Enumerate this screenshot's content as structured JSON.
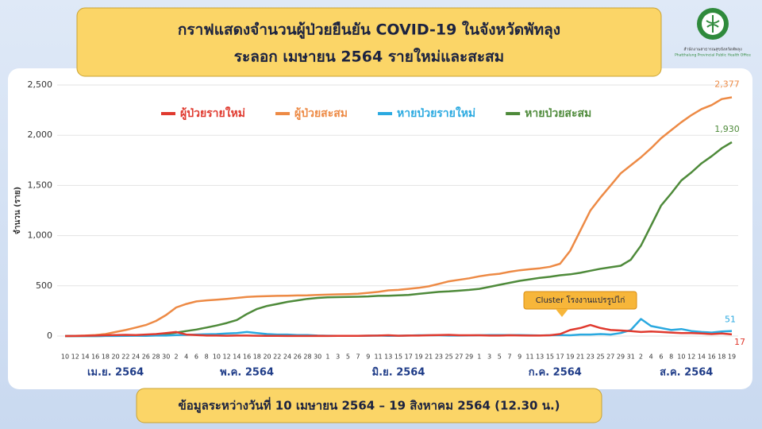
{
  "header": {
    "title_line1": "กราฟแสดงจำนวนผู้ป่วยยืนยัน COVID-19 ในจังหวัดพัทลุง",
    "title_line2": "ระลอก เมษายน 2564 รายใหม่และสะสม",
    "org_th": "สำนักงานสาธารณสุขจังหวัดพัทลุง",
    "org_en": "Phatthalung Provincial Public Health Office"
  },
  "footer": "ข้อมูลระหว่างวันที่ 10 เมษายน 2564 – 19 สิงหาคม 2564 (12.30 น.)",
  "chart_data": {
    "type": "line",
    "y_label": "จำนวน (ราย)",
    "categories": [
      "10",
      "12",
      "14",
      "16",
      "18",
      "20",
      "22",
      "24",
      "26",
      "28",
      "30",
      "2",
      "4",
      "6",
      "8",
      "10",
      "12",
      "14",
      "16",
      "18",
      "20",
      "22",
      "24",
      "26",
      "28",
      "30",
      "1",
      "3",
      "5",
      "7",
      "9",
      "11",
      "13",
      "15",
      "17",
      "19",
      "21",
      "23",
      "25",
      "27",
      "29",
      "1",
      "3",
      "5",
      "7",
      "9",
      "11",
      "13",
      "15",
      "17",
      "19",
      "21",
      "23",
      "25",
      "27",
      "29",
      "31",
      "2",
      "4",
      "6",
      "8",
      "10",
      "12",
      "14",
      "16",
      "18",
      "19"
    ],
    "months": [
      "เม.ย. 2564",
      "พ.ค. 2564",
      "มิ.ย. 2564",
      "ก.ค. 2564",
      "ส.ค. 2564"
    ],
    "ylim": [
      0,
      2500
    ],
    "yticks": [
      0,
      500,
      {
        "value": 1000,
        "label": "1,000"
      },
      {
        "value": 1500,
        "label": "1,500"
      },
      {
        "value": 2000,
        "label": "2,000"
      },
      {
        "value": 2500,
        "label": "2,500"
      }
    ],
    "grid": true,
    "series": [
      {
        "name": "ผู้ป่วยรายใหม่",
        "color": "#e03a2f",
        "values": [
          0,
          1,
          3,
          5,
          8,
          10,
          12,
          10,
          15,
          20,
          30,
          40,
          15,
          10,
          5,
          5,
          3,
          5,
          5,
          3,
          2,
          2,
          1,
          1,
          1,
          2,
          1,
          2,
          2,
          2,
          4,
          5,
          8,
          3,
          5,
          5,
          8,
          10,
          12,
          8,
          8,
          8,
          5,
          5,
          8,
          6,
          5,
          5,
          8,
          20,
          60,
          80,
          110,
          80,
          60,
          55,
          50,
          40,
          45,
          40,
          35,
          30,
          30,
          25,
          20,
          25,
          17
        ]
      },
      {
        "name": "ผู้ป่วยสะสม",
        "color": "#ed8a45",
        "values": [
          0,
          2,
          5,
          10,
          20,
          40,
          60,
          85,
          110,
          150,
          210,
          285,
          320,
          345,
          355,
          362,
          370,
          380,
          390,
          395,
          398,
          400,
          402,
          404,
          405,
          410,
          412,
          415,
          418,
          422,
          430,
          440,
          455,
          460,
          470,
          480,
          495,
          520,
          545,
          560,
          575,
          595,
          610,
          620,
          640,
          655,
          665,
          675,
          690,
          720,
          850,
          1050,
          1250,
          1380,
          1500,
          1620,
          1700,
          1780,
          1870,
          1970,
          2050,
          2130,
          2200,
          2260,
          2300,
          2360,
          2377
        ],
        "value_labels": [
          null,
          null,
          null,
          null,
          null,
          null,
          null,
          null,
          null,
          null,
          null,
          null,
          null,
          null,
          null,
          null,
          null,
          null,
          null,
          null,
          null,
          null,
          null,
          null,
          null,
          null,
          null,
          null,
          null,
          null,
          null,
          null,
          null,
          null,
          null,
          null,
          null,
          null,
          null,
          null,
          null,
          null,
          null,
          null,
          null,
          null,
          null,
          null,
          null,
          null,
          null,
          null,
          null,
          null,
          null,
          null,
          null,
          null,
          null,
          null,
          null,
          null,
          null,
          null,
          null,
          null,
          "2,377"
        ]
      },
      {
        "name": "หายป่วยรายใหม่",
        "color": "#2aa9e0",
        "values": [
          0,
          0,
          0,
          0,
          1,
          1,
          2,
          3,
          2,
          5,
          5,
          10,
          12,
          15,
          18,
          20,
          25,
          30,
          40,
          30,
          20,
          15,
          15,
          10,
          10,
          5,
          3,
          2,
          2,
          2,
          3,
          5,
          2,
          3,
          5,
          8,
          8,
          8,
          5,
          5,
          6,
          8,
          10,
          10,
          10,
          10,
          8,
          6,
          8,
          10,
          8,
          15,
          15,
          20,
          15,
          30,
          60,
          170,
          100,
          80,
          60,
          70,
          50,
          40,
          35,
          45,
          51
        ]
      },
      {
        "name": "หายป่วยสะสม",
        "color": "#4e8a3a",
        "values": [
          0,
          0,
          0,
          0,
          2,
          3,
          5,
          8,
          10,
          15,
          20,
          35,
          50,
          65,
          85,
          105,
          130,
          160,
          220,
          270,
          300,
          320,
          340,
          355,
          370,
          380,
          385,
          388,
          390,
          392,
          395,
          400,
          402,
          405,
          410,
          420,
          430,
          440,
          445,
          452,
          460,
          470,
          490,
          510,
          530,
          550,
          565,
          580,
          590,
          605,
          615,
          630,
          650,
          670,
          685,
          700,
          760,
          900,
          1100,
          1300,
          1420,
          1550,
          1630,
          1720,
          1790,
          1870,
          1930
        ],
        "value_labels": [
          null,
          null,
          null,
          null,
          null,
          null,
          null,
          null,
          null,
          null,
          null,
          null,
          null,
          null,
          null,
          null,
          null,
          null,
          null,
          null,
          null,
          null,
          null,
          null,
          null,
          null,
          null,
          null,
          null,
          null,
          null,
          null,
          null,
          null,
          null,
          null,
          null,
          null,
          null,
          null,
          null,
          null,
          null,
          null,
          null,
          null,
          null,
          null,
          null,
          null,
          null,
          null,
          null,
          null,
          null,
          null,
          null,
          null,
          null,
          null,
          null,
          null,
          null,
          null,
          null,
          null,
          "1,930"
        ]
      }
    ],
    "annotation": "Cluster โรงงานแปรรูปไก่"
  }
}
